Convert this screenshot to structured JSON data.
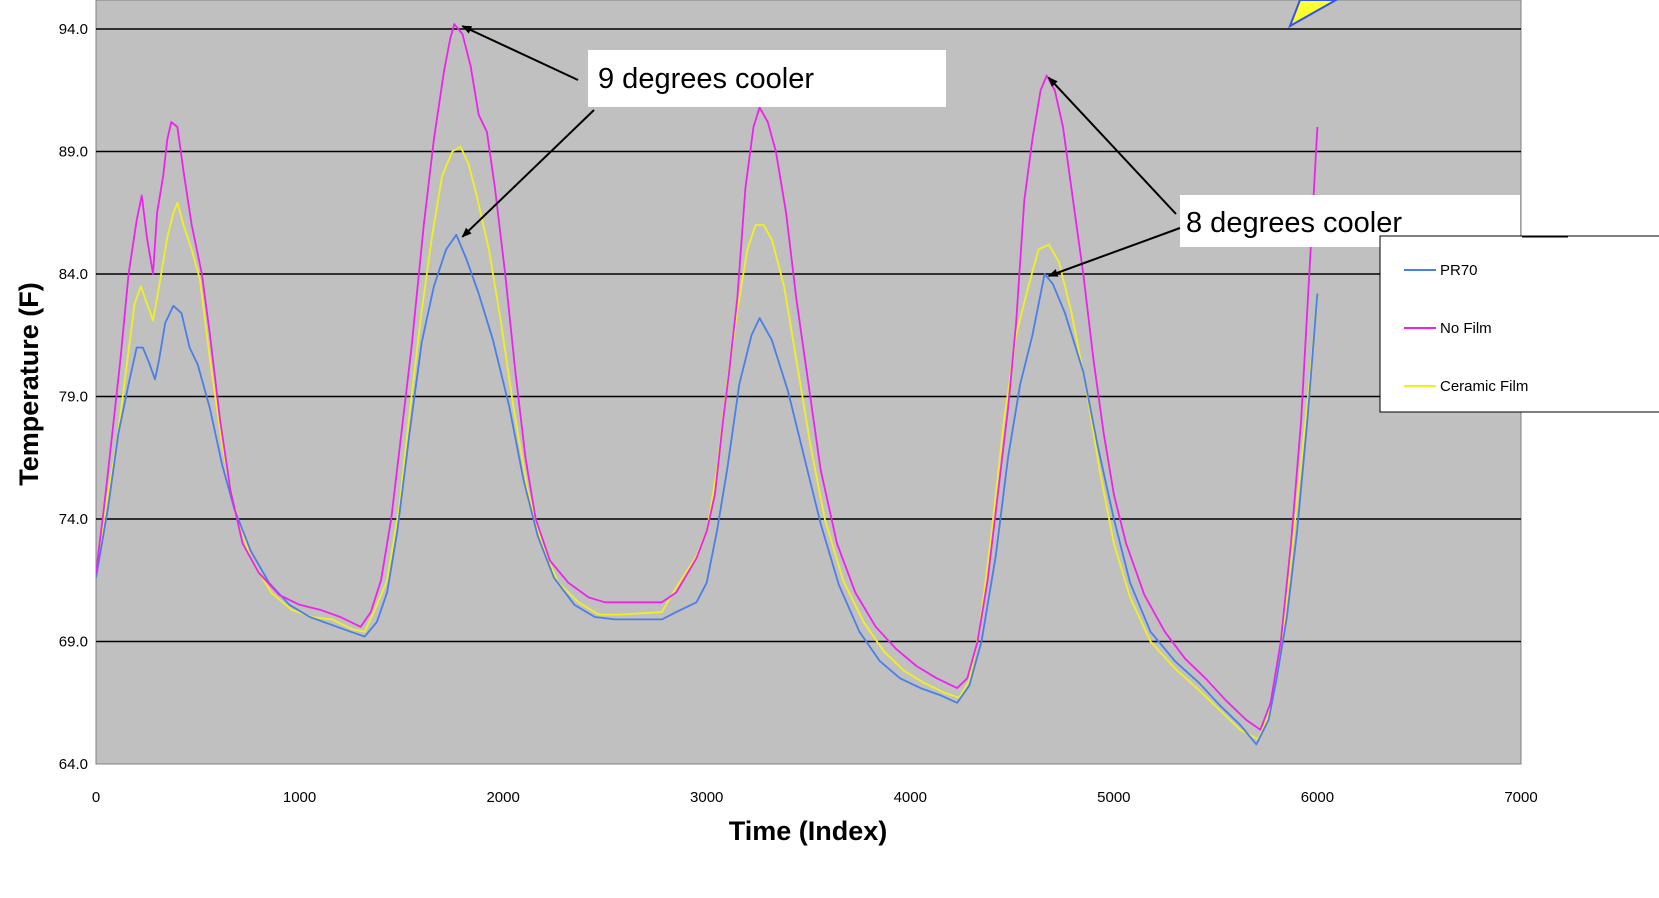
{
  "chart_data": {
    "type": "line",
    "title": "",
    "xlabel": "Time (Index)",
    "ylabel": "Temperature (F)",
    "xlim": [
      0,
      7000
    ],
    "ylim": [
      64.0,
      94.0
    ],
    "x_ticks": [
      0,
      1000,
      2000,
      3000,
      4000,
      5000,
      6000,
      7000
    ],
    "y_ticks": [
      64.0,
      69.0,
      74.0,
      79.0,
      84.0,
      89.0,
      94.0
    ],
    "y_tick_labels": [
      "64.0",
      "69.0",
      "74.0",
      "79.0",
      "84.0",
      "89.0",
      "94.0"
    ],
    "grid": "horizontal",
    "legend_position": "right",
    "plot_background": "#c0c0c0",
    "series": [
      {
        "name": "PR70",
        "color": "#4a7ee8",
        "points": [
          [
            0,
            71.6
          ],
          [
            60,
            74.5
          ],
          [
            110,
            77.5
          ],
          [
            160,
            79.5
          ],
          [
            200,
            81.0
          ],
          [
            230,
            81.0
          ],
          [
            260,
            80.4
          ],
          [
            290,
            79.7
          ],
          [
            310,
            80.5
          ],
          [
            340,
            82.0
          ],
          [
            380,
            82.7
          ],
          [
            420,
            82.4
          ],
          [
            460,
            81.0
          ],
          [
            500,
            80.3
          ],
          [
            560,
            78.5
          ],
          [
            620,
            76.2
          ],
          [
            680,
            74.4
          ],
          [
            760,
            72.7
          ],
          [
            850,
            71.4
          ],
          [
            950,
            70.5
          ],
          [
            1050,
            70.0
          ],
          [
            1150,
            69.7
          ],
          [
            1250,
            69.4
          ],
          [
            1320,
            69.2
          ],
          [
            1380,
            69.8
          ],
          [
            1430,
            71.0
          ],
          [
            1480,
            73.5
          ],
          [
            1540,
            77.5
          ],
          [
            1600,
            81.2
          ],
          [
            1660,
            83.5
          ],
          [
            1720,
            85.0
          ],
          [
            1770,
            85.6
          ],
          [
            1820,
            84.6
          ],
          [
            1880,
            83.2
          ],
          [
            1950,
            81.3
          ],
          [
            2030,
            78.6
          ],
          [
            2100,
            75.6
          ],
          [
            2170,
            73.3
          ],
          [
            2250,
            71.6
          ],
          [
            2350,
            70.5
          ],
          [
            2450,
            70.0
          ],
          [
            2550,
            69.9
          ],
          [
            2650,
            69.9
          ],
          [
            2780,
            69.9
          ],
          [
            2850,
            70.2
          ],
          [
            2950,
            70.6
          ],
          [
            3000,
            71.4
          ],
          [
            3050,
            73.5
          ],
          [
            3100,
            76.0
          ],
          [
            3160,
            79.5
          ],
          [
            3220,
            81.5
          ],
          [
            3260,
            82.2
          ],
          [
            3320,
            81.3
          ],
          [
            3400,
            79.2
          ],
          [
            3480,
            76.5
          ],
          [
            3560,
            73.8
          ],
          [
            3650,
            71.3
          ],
          [
            3750,
            69.4
          ],
          [
            3850,
            68.2
          ],
          [
            3950,
            67.5
          ],
          [
            4050,
            67.1
          ],
          [
            4150,
            66.8
          ],
          [
            4230,
            66.5
          ],
          [
            4290,
            67.2
          ],
          [
            4350,
            69.0
          ],
          [
            4420,
            72.5
          ],
          [
            4480,
            76.5
          ],
          [
            4540,
            79.5
          ],
          [
            4600,
            81.5
          ],
          [
            4660,
            84.0
          ],
          [
            4700,
            83.6
          ],
          [
            4760,
            82.4
          ],
          [
            4850,
            80.0
          ],
          [
            4920,
            77.0
          ],
          [
            5000,
            74.0
          ],
          [
            5080,
            71.4
          ],
          [
            5180,
            69.4
          ],
          [
            5300,
            68.2
          ],
          [
            5420,
            67.3
          ],
          [
            5520,
            66.4
          ],
          [
            5620,
            65.6
          ],
          [
            5700,
            64.8
          ],
          [
            5760,
            65.8
          ],
          [
            5800,
            67.5
          ],
          [
            5850,
            70.0
          ],
          [
            5900,
            73.5
          ],
          [
            5950,
            78.0
          ],
          [
            6000,
            83.2
          ]
        ]
      },
      {
        "name": "No Film",
        "color": "#ee22ee",
        "points": [
          [
            0,
            71.8
          ],
          [
            40,
            74.5
          ],
          [
            80,
            77.5
          ],
          [
            120,
            80.5
          ],
          [
            160,
            84.0
          ],
          [
            200,
            86.2
          ],
          [
            225,
            87.2
          ],
          [
            250,
            85.5
          ],
          [
            280,
            84.0
          ],
          [
            300,
            86.5
          ],
          [
            330,
            88.0
          ],
          [
            350,
            89.5
          ],
          [
            370,
            90.2
          ],
          [
            400,
            90.0
          ],
          [
            430,
            88.2
          ],
          [
            470,
            86.0
          ],
          [
            520,
            84.0
          ],
          [
            560,
            81.5
          ],
          [
            610,
            78.0
          ],
          [
            660,
            75.2
          ],
          [
            720,
            73.0
          ],
          [
            800,
            71.8
          ],
          [
            900,
            70.9
          ],
          [
            1000,
            70.5
          ],
          [
            1100,
            70.3
          ],
          [
            1200,
            70.0
          ],
          [
            1300,
            69.6
          ],
          [
            1350,
            70.2
          ],
          [
            1400,
            71.5
          ],
          [
            1450,
            74.0
          ],
          [
            1500,
            77.5
          ],
          [
            1550,
            81.0
          ],
          [
            1610,
            86.0
          ],
          [
            1660,
            89.5
          ],
          [
            1710,
            92.3
          ],
          [
            1740,
            93.6
          ],
          [
            1760,
            94.2
          ],
          [
            1800,
            93.8
          ],
          [
            1840,
            92.5
          ],
          [
            1880,
            90.5
          ],
          [
            1920,
            89.8
          ],
          [
            1960,
            87.5
          ],
          [
            2010,
            84.0
          ],
          [
            2060,
            80.0
          ],
          [
            2110,
            76.5
          ],
          [
            2160,
            74.0
          ],
          [
            2230,
            72.3
          ],
          [
            2320,
            71.4
          ],
          [
            2420,
            70.8
          ],
          [
            2500,
            70.6
          ],
          [
            2650,
            70.6
          ],
          [
            2780,
            70.6
          ],
          [
            2850,
            71.0
          ],
          [
            2950,
            72.4
          ],
          [
            3000,
            73.5
          ],
          [
            3040,
            75.0
          ],
          [
            3080,
            78.0
          ],
          [
            3110,
            80.0
          ],
          [
            3150,
            83.0
          ],
          [
            3190,
            87.5
          ],
          [
            3230,
            90.0
          ],
          [
            3260,
            90.8
          ],
          [
            3300,
            90.2
          ],
          [
            3340,
            89.0
          ],
          [
            3390,
            86.5
          ],
          [
            3440,
            83.0
          ],
          [
            3500,
            79.5
          ],
          [
            3560,
            76.0
          ],
          [
            3640,
            73.0
          ],
          [
            3730,
            71.0
          ],
          [
            3830,
            69.6
          ],
          [
            3930,
            68.7
          ],
          [
            4030,
            68.0
          ],
          [
            4130,
            67.5
          ],
          [
            4230,
            67.1
          ],
          [
            4280,
            67.5
          ],
          [
            4330,
            69.0
          ],
          [
            4380,
            71.5
          ],
          [
            4430,
            75.0
          ],
          [
            4480,
            78.5
          ],
          [
            4520,
            82.0
          ],
          [
            4560,
            87.0
          ],
          [
            4600,
            89.5
          ],
          [
            4640,
            91.5
          ],
          [
            4670,
            92.1
          ],
          [
            4710,
            91.5
          ],
          [
            4750,
            90.0
          ],
          [
            4800,
            87.0
          ],
          [
            4850,
            84.0
          ],
          [
            4900,
            80.5
          ],
          [
            4950,
            77.5
          ],
          [
            5000,
            75.0
          ],
          [
            5060,
            73.0
          ],
          [
            5150,
            70.9
          ],
          [
            5250,
            69.4
          ],
          [
            5350,
            68.3
          ],
          [
            5450,
            67.5
          ],
          [
            5550,
            66.6
          ],
          [
            5650,
            65.8
          ],
          [
            5720,
            65.4
          ],
          [
            5770,
            66.5
          ],
          [
            5820,
            69.0
          ],
          [
            5870,
            73.0
          ],
          [
            5920,
            78.0
          ],
          [
            5960,
            84.0
          ],
          [
            6000,
            90.0
          ]
        ]
      },
      {
        "name": "Ceramic Film",
        "color": "#f0f020",
        "points": [
          [
            0,
            71.9
          ],
          [
            50,
            74.6
          ],
          [
            100,
            77.0
          ],
          [
            150,
            80.2
          ],
          [
            190,
            82.8
          ],
          [
            220,
            83.5
          ],
          [
            250,
            82.8
          ],
          [
            280,
            82.1
          ],
          [
            310,
            83.5
          ],
          [
            350,
            85.5
          ],
          [
            380,
            86.5
          ],
          [
            400,
            86.9
          ],
          [
            430,
            86.0
          ],
          [
            470,
            85.0
          ],
          [
            510,
            83.8
          ],
          [
            560,
            80.5
          ],
          [
            620,
            77.0
          ],
          [
            680,
            74.5
          ],
          [
            760,
            72.4
          ],
          [
            860,
            71.0
          ],
          [
            960,
            70.3
          ],
          [
            1060,
            70.0
          ],
          [
            1160,
            69.9
          ],
          [
            1260,
            69.5
          ],
          [
            1320,
            69.4
          ],
          [
            1370,
            70.3
          ],
          [
            1430,
            71.5
          ],
          [
            1490,
            74.5
          ],
          [
            1550,
            79.0
          ],
          [
            1600,
            82.5
          ],
          [
            1650,
            85.5
          ],
          [
            1700,
            88.0
          ],
          [
            1750,
            89.0
          ],
          [
            1790,
            89.2
          ],
          [
            1830,
            88.5
          ],
          [
            1870,
            87.2
          ],
          [
            1930,
            85.0
          ],
          [
            1990,
            82.0
          ],
          [
            2050,
            78.6
          ],
          [
            2120,
            75.2
          ],
          [
            2190,
            73.0
          ],
          [
            2270,
            71.4
          ],
          [
            2370,
            70.6
          ],
          [
            2470,
            70.1
          ],
          [
            2570,
            70.1
          ],
          [
            2780,
            70.2
          ],
          [
            2850,
            71.2
          ],
          [
            2950,
            72.5
          ],
          [
            3000,
            73.5
          ],
          [
            3050,
            76.0
          ],
          [
            3100,
            79.5
          ],
          [
            3150,
            82.5
          ],
          [
            3200,
            85.0
          ],
          [
            3240,
            86.0
          ],
          [
            3280,
            86.0
          ],
          [
            3320,
            85.4
          ],
          [
            3380,
            83.5
          ],
          [
            3440,
            80.5
          ],
          [
            3510,
            77.0
          ],
          [
            3580,
            74.0
          ],
          [
            3670,
            71.5
          ],
          [
            3770,
            69.8
          ],
          [
            3870,
            68.6
          ],
          [
            3970,
            67.8
          ],
          [
            4070,
            67.3
          ],
          [
            4170,
            66.9
          ],
          [
            4240,
            66.7
          ],
          [
            4290,
            67.4
          ],
          [
            4340,
            69.5
          ],
          [
            4400,
            73.5
          ],
          [
            4460,
            78.0
          ],
          [
            4520,
            81.5
          ],
          [
            4580,
            83.5
          ],
          [
            4630,
            85.0
          ],
          [
            4680,
            85.2
          ],
          [
            4730,
            84.5
          ],
          [
            4790,
            82.5
          ],
          [
            4860,
            79.5
          ],
          [
            4930,
            76.0
          ],
          [
            5000,
            73.0
          ],
          [
            5080,
            70.8
          ],
          [
            5180,
            69.0
          ],
          [
            5300,
            67.9
          ],
          [
            5420,
            67.0
          ],
          [
            5520,
            66.2
          ],
          [
            5620,
            65.4
          ],
          [
            5710,
            65.0
          ],
          [
            5760,
            66.0
          ],
          [
            5810,
            68.0
          ],
          [
            5860,
            71.5
          ],
          [
            5910,
            75.5
          ],
          [
            5960,
            79.5
          ],
          [
            6000,
            83.0
          ]
        ]
      }
    ],
    "annotations": [
      {
        "text": "9 degrees cooler",
        "arrows_to": [
          [
            1780,
            94.2
          ],
          [
            1780,
            85.6
          ]
        ]
      },
      {
        "text": "8 degrees cooler",
        "arrows_to": [
          [
            4660,
            92.1
          ],
          [
            4660,
            84.0
          ]
        ]
      }
    ]
  }
}
